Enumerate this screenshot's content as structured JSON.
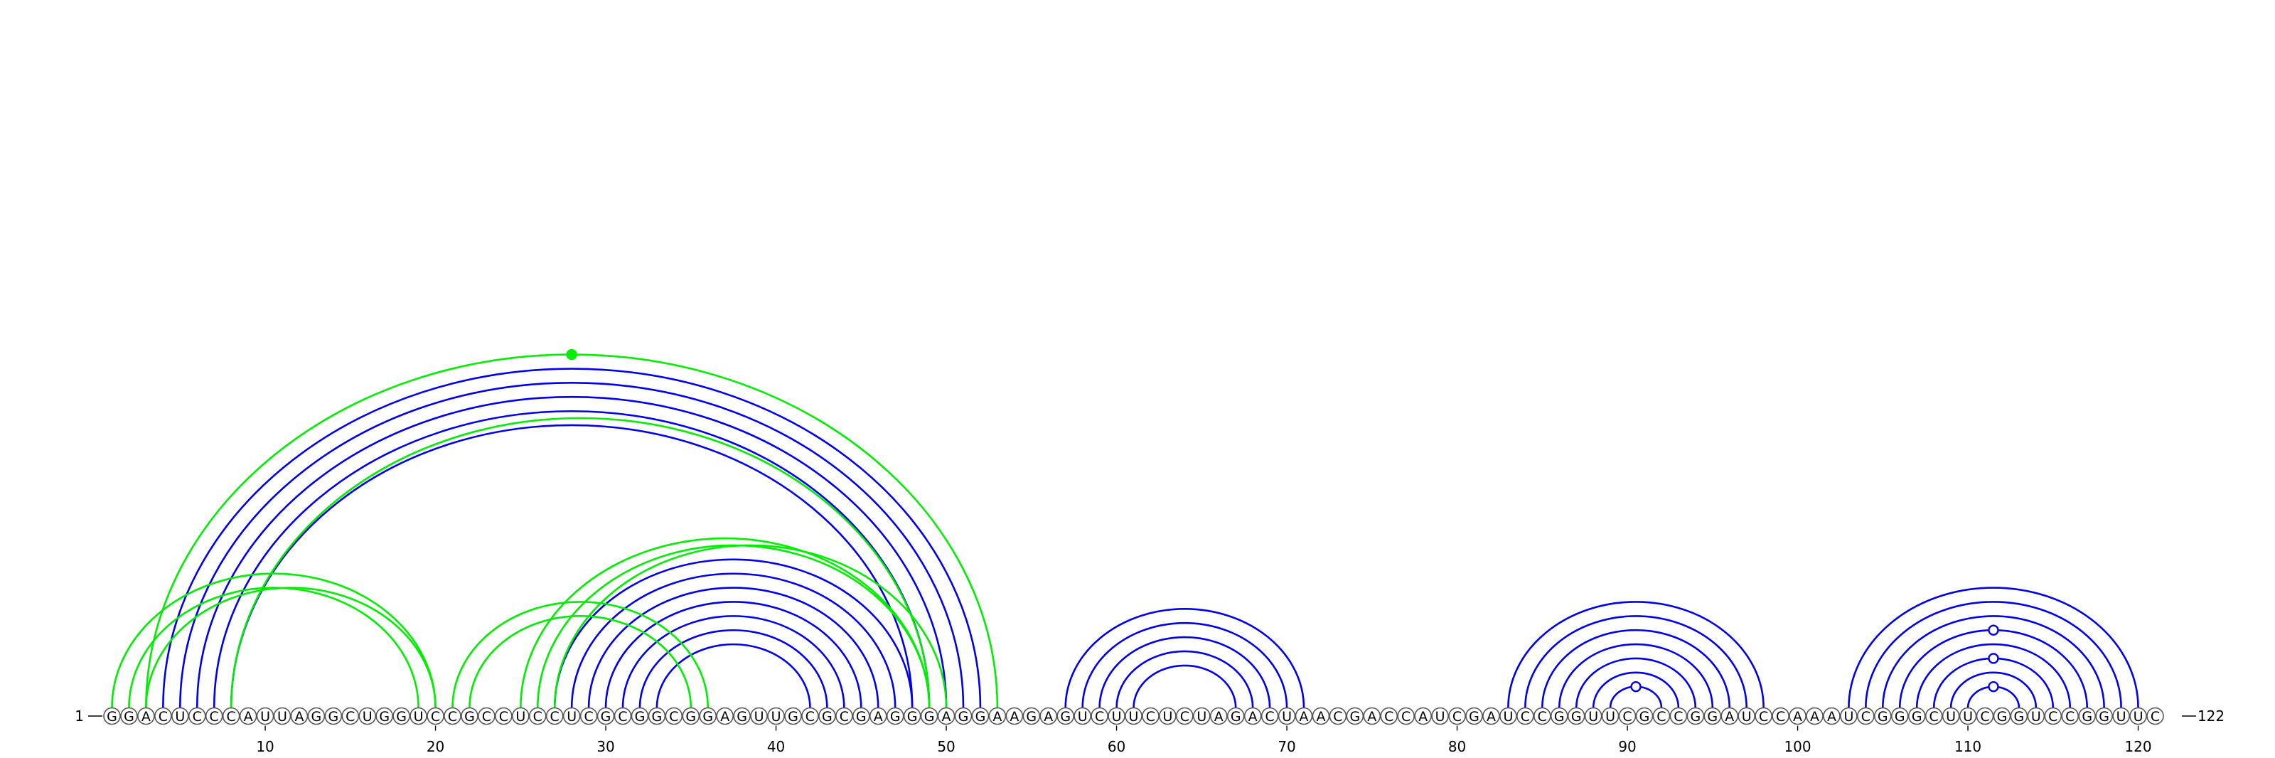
{
  "sequence": "GGACUCCCAUUAGGCUGGUCCGCCUCCUCGCGGCGGAGUUGCGCGAGGGAGGAAGAGUCUUCUCUAGACUAACGACCAUCGAUCCGGUUCGCCGGAUCCAAAUCGGGCUUCGGUCCGGUUC",
  "length": 122,
  "start_label": "1",
  "end_label": "122",
  "tick_labels": [
    "10",
    "20",
    "30",
    "40",
    "50",
    "60",
    "70",
    "80",
    "90",
    "100",
    "110",
    "120"
  ],
  "colors": {
    "reference": "#0000ee",
    "predicted": "#00ee00"
  },
  "reference_pairs": [
    [
      4,
      52
    ],
    [
      5,
      51
    ],
    [
      6,
      50
    ],
    [
      7,
      49
    ],
    [
      8,
      48
    ],
    [
      27,
      48
    ],
    [
      28,
      47
    ],
    [
      29,
      46
    ],
    [
      30,
      45
    ],
    [
      31,
      44
    ],
    [
      32,
      43
    ],
    [
      33,
      42
    ],
    [
      57,
      71
    ],
    [
      58,
      70
    ],
    [
      59,
      69
    ],
    [
      60,
      68
    ],
    [
      61,
      67
    ],
    [
      83,
      98
    ],
    [
      84,
      97
    ],
    [
      85,
      96
    ],
    [
      86,
      95
    ],
    [
      87,
      94
    ],
    [
      88,
      93
    ],
    [
      89,
      92
    ],
    [
      103,
      120
    ],
    [
      104,
      119
    ],
    [
      105,
      118
    ],
    [
      106,
      117
    ],
    [
      107,
      116
    ],
    [
      108,
      115
    ],
    [
      109,
      114
    ],
    [
      110,
      113
    ]
  ],
  "predicted_pairs": [
    [
      1,
      20
    ],
    [
      2,
      19
    ],
    [
      3,
      20
    ],
    [
      3,
      53
    ],
    [
      8,
      49
    ],
    [
      21,
      36
    ],
    [
      22,
      35
    ],
    [
      25,
      49
    ],
    [
      26,
      49
    ],
    [
      27,
      50
    ]
  ],
  "markers": [
    {
      "pair": [
        3,
        53
      ],
      "color": "#00ee00",
      "filled": true
    },
    {
      "pair": [
        89,
        92
      ],
      "color": "#0000ee",
      "filled": false
    },
    {
      "pair": [
        110,
        113
      ],
      "color": "#0000ee",
      "filled": false
    },
    {
      "pair": [
        108,
        115
      ],
      "color": "#0000ee",
      "filled": false
    },
    {
      "pair": [
        106,
        117
      ],
      "color": "#0000ee",
      "filled": false
    }
  ]
}
